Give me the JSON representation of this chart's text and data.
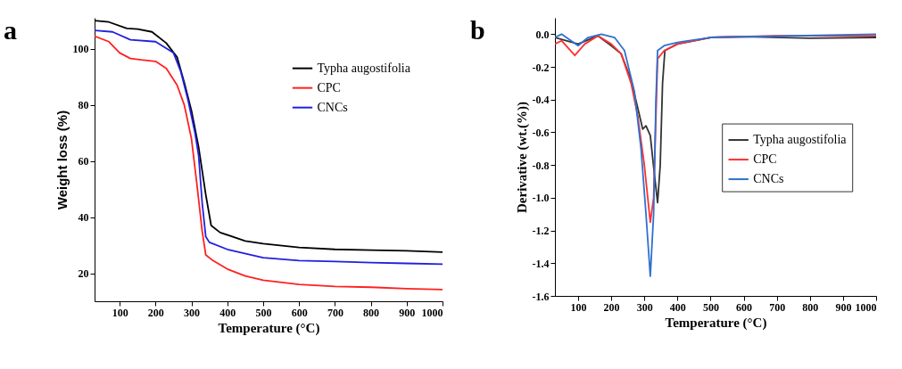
{
  "chart_data": [
    {
      "type": "line",
      "annotations": [
        "a"
      ],
      "xlabel": "Temperature (°C)",
      "ylabel": "Weight loss (%)",
      "xlim": [
        30,
        1000
      ],
      "ylim": [
        10,
        111
      ],
      "xticks": [
        100,
        200,
        300,
        400,
        500,
        600,
        700,
        800,
        900,
        1000
      ],
      "yticks": [
        20,
        40,
        60,
        80,
        100
      ],
      "grid": false,
      "legend": "top right",
      "line_style": "solid",
      "series": [
        {
          "name": "Typha augostifolia",
          "color": "#000000",
          "x": [
            30,
            70,
            120,
            150,
            190,
            230,
            260,
            280,
            300,
            320,
            340,
            355,
            380,
            450,
            500,
            600,
            700,
            800,
            900,
            1000
          ],
          "values": [
            110,
            109.5,
            107.2,
            107,
            106,
            102,
            97,
            88,
            78,
            65,
            48,
            37,
            34.5,
            31.5,
            30.5,
            29.2,
            28.5,
            28.2,
            28,
            27.5
          ]
        },
        {
          "name": "CPC",
          "color": "#ff2020",
          "x": [
            30,
            70,
            100,
            130,
            160,
            200,
            230,
            260,
            280,
            300,
            315,
            330,
            340,
            360,
            400,
            450,
            500,
            600,
            700,
            800,
            900,
            1000
          ],
          "values": [
            104.5,
            102.5,
            98.5,
            96.5,
            96,
            95.5,
            93,
            87,
            80,
            68,
            52,
            35,
            26.5,
            24.5,
            21.5,
            19,
            17.5,
            16,
            15.3,
            15,
            14.5,
            14.2
          ]
        },
        {
          "name": "CNCs",
          "color": "#2020e0",
          "x": [
            30,
            80,
            130,
            200,
            250,
            270,
            290,
            310,
            320,
            330,
            340,
            350,
            400,
            500,
            600,
            700,
            800,
            900,
            1000
          ],
          "values": [
            106.5,
            106,
            103.2,
            102.5,
            98.5,
            92,
            82,
            70,
            62,
            45,
            33,
            31,
            28.5,
            25.5,
            24.5,
            24.2,
            23.8,
            23.5,
            23.2
          ]
        }
      ]
    },
    {
      "type": "line",
      "annotations": [
        "b"
      ],
      "xlabel": "Temperature (°C)",
      "ylabel": "Derivative (wt.(%))",
      "xlim": [
        30,
        1000
      ],
      "ylim": [
        -1.6,
        0.1
      ],
      "xticks": [
        100,
        200,
        300,
        400,
        500,
        600,
        700,
        800,
        900,
        1000
      ],
      "yticks": [
        {
          "value": 0,
          "label": "0.0"
        },
        {
          "value": -0.2,
          "label": "-0.2"
        },
        {
          "value": -0.4,
          "label": "-0.4"
        },
        {
          "value": -0.6,
          "label": "-0.6"
        },
        {
          "value": -0.8,
          "label": "-0.8"
        },
        {
          "value": -1,
          "label": "-1.0"
        },
        {
          "value": -1.2,
          "label": "-1.2"
        },
        {
          "value": -1.4,
          "label": "-1.4"
        },
        {
          "value": -1.6,
          "label": "-1.6"
        }
      ],
      "grid": false,
      "legend": "right",
      "line_style": "solid",
      "series": [
        {
          "name": "Typha augostifolia",
          "color": "#333333",
          "x": [
            30,
            100,
            160,
            200,
            230,
            260,
            280,
            295,
            305,
            318,
            330,
            340,
            348,
            355,
            362,
            400,
            500,
            600,
            800,
            1000
          ],
          "values": [
            -0.02,
            -0.06,
            -0.01,
            -0.07,
            -0.12,
            -0.28,
            -0.45,
            -0.58,
            -0.56,
            -0.62,
            -0.85,
            -1.03,
            -0.8,
            -0.3,
            -0.1,
            -0.06,
            -0.02,
            -0.015,
            -0.025,
            -0.02
          ]
        },
        {
          "name": "CPC",
          "color": "#ff3030",
          "x": [
            30,
            50,
            90,
            120,
            160,
            200,
            230,
            260,
            280,
            300,
            318,
            328,
            335,
            340,
            360,
            400,
            500,
            700,
            1000
          ],
          "values": [
            -0.06,
            -0.04,
            -0.13,
            -0.06,
            -0.01,
            -0.06,
            -0.12,
            -0.3,
            -0.5,
            -0.8,
            -1.15,
            -1.0,
            -0.5,
            -0.15,
            -0.1,
            -0.06,
            -0.02,
            -0.01,
            -0.01
          ]
        },
        {
          "name": "CNCs",
          "color": "#3070d0",
          "x": [
            30,
            50,
            100,
            130,
            170,
            210,
            240,
            270,
            290,
            305,
            318,
            328,
            335,
            340,
            360,
            400,
            500,
            1000
          ],
          "values": [
            -0.02,
            0,
            -0.07,
            -0.02,
            0,
            -0.02,
            -0.1,
            -0.35,
            -0.7,
            -1.1,
            -1.48,
            -1.1,
            -0.4,
            -0.1,
            -0.07,
            -0.05,
            -0.02,
            0
          ]
        }
      ]
    }
  ]
}
